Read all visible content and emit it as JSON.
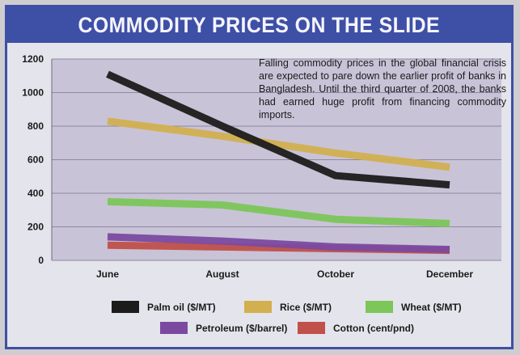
{
  "chart_data": {
    "type": "line",
    "title": "COMMODITY PRICES ON THE SLIDE",
    "annotation": "Falling commodity prices in the global financial crisis are expected to pare down the earlier profit of banks in Bangladesh. Until the third quarter of 2008, the banks had earned huge profit from financing commodity imports.",
    "categories": [
      "June",
      "August",
      "October",
      "December"
    ],
    "y_ticks": [
      0,
      200,
      400,
      600,
      800,
      1000,
      1200
    ],
    "ylim": [
      0,
      1200
    ],
    "grid": true,
    "series": [
      {
        "name": "Palm oil ($/MT)",
        "color": "#1c1c1c",
        "values": [
          1110,
          800,
          505,
          450
        ]
      },
      {
        "name": "Rice ($/MT)",
        "color": "#d2b050",
        "values": [
          830,
          740,
          640,
          555
        ]
      },
      {
        "name": "Wheat ($/MT)",
        "color": "#7cc65a",
        "values": [
          350,
          330,
          245,
          220
        ]
      },
      {
        "name": "Petroleum ($/barrel)",
        "color": "#7b4aa0",
        "values": [
          140,
          115,
          80,
          65
        ]
      },
      {
        "name": "Cotton (cent/pnd)",
        "color": "#c0504a",
        "values": [
          90,
          80,
          70,
          60
        ]
      }
    ]
  }
}
